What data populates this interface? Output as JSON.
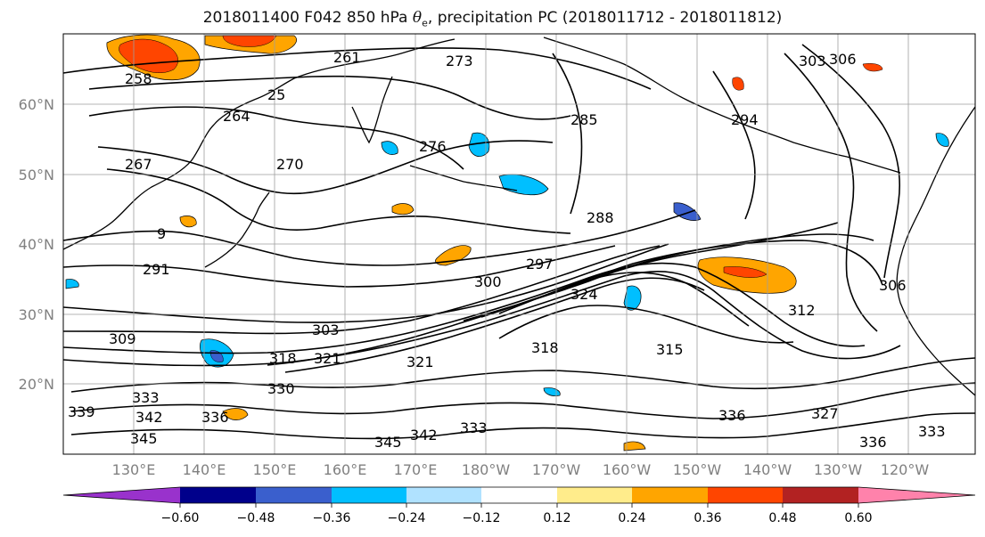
{
  "title": {
    "prefix": "2018011400 F042 850 hPa ",
    "symbol": "θ",
    "subscript": "e",
    "suffix": ", precipitation PC (2018011712 - 2018011812)"
  },
  "map": {
    "lat_labels": [
      "60°N",
      "50°N",
      "40°N",
      "30°N",
      "20°N"
    ],
    "lon_labels": [
      "130°E",
      "140°E",
      "150°E",
      "160°E",
      "170°E",
      "180°W",
      "170°W",
      "160°W",
      "150°W",
      "140°W",
      "130°W",
      "120°W"
    ],
    "contour_labels": [
      "261",
      "273",
      "258",
      "264",
      "25",
      "267",
      "270",
      "276",
      "285",
      "294",
      "303",
      "306",
      "288",
      "297",
      "300",
      "291",
      "9",
      "324",
      "306",
      "303",
      "309",
      "318",
      "315",
      "321",
      "312",
      "318",
      "321",
      "330",
      "333",
      "339",
      "342",
      "345",
      "342",
      "345",
      "333",
      "336",
      "333",
      "327",
      "336",
      "336"
    ],
    "land_color": "#000000",
    "grid_color": "#9e9e9e"
  },
  "colorbar": {
    "colors": [
      "#9932cc",
      "#00008b",
      "#3a5fcd",
      "#00bfff",
      "#b0e2ff",
      "#ffffff",
      "#ffec8b",
      "#ffa500",
      "#ff4500",
      "#b22222",
      "#ff82ab"
    ],
    "tick_labels": [
      "−0.60",
      "−0.48",
      "−0.36",
      "−0.24",
      "−0.12",
      "0.12",
      "0.24",
      "0.36",
      "0.48",
      "0.60"
    ]
  }
}
